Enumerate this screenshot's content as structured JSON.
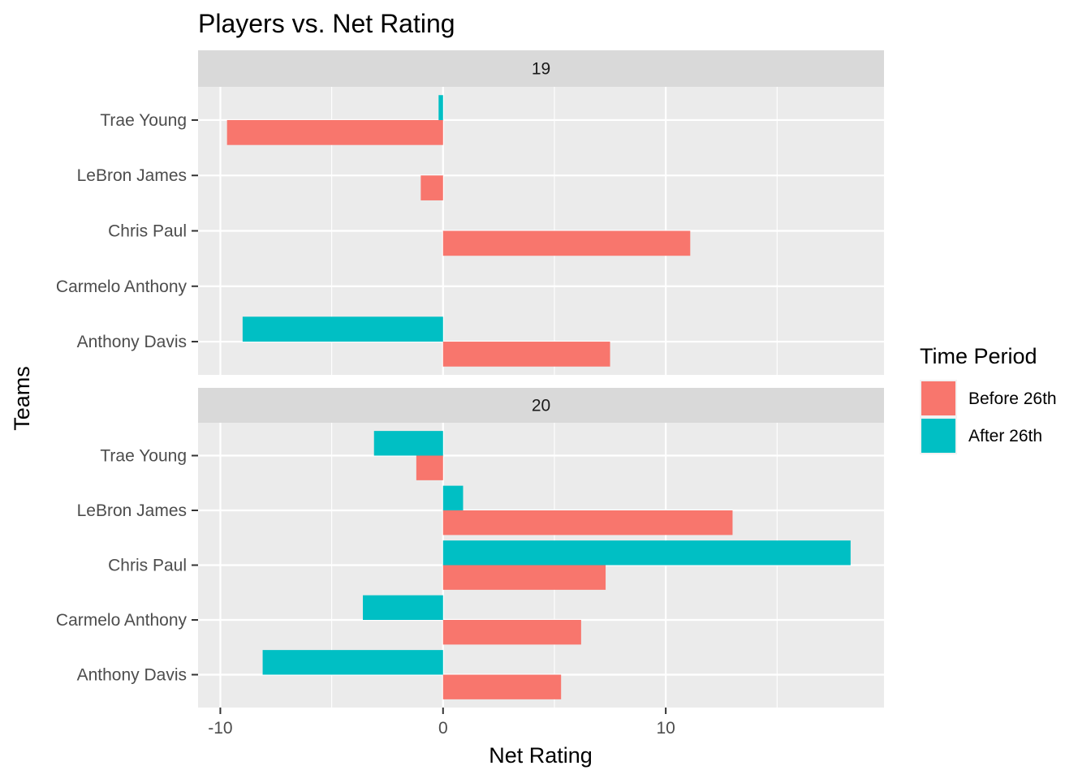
{
  "chart_data": {
    "type": "bar",
    "orientation": "horizontal",
    "title": "Players vs. Net Rating",
    "xlabel": "Net Rating",
    "ylabel": "Teams",
    "xlim": [
      -11,
      19.8
    ],
    "x_ticks": [
      -10,
      0,
      10
    ],
    "x_tick_labels": [
      "-10",
      "0",
      "10"
    ],
    "categories": [
      "Trae Young",
      "LeBron James",
      "Chris Paul",
      "Carmelo Anthony",
      "Anthony Davis"
    ],
    "legend": {
      "title": "Time Period",
      "position": "right",
      "entries": [
        {
          "label": "Before 26th",
          "color": "#F8766D"
        },
        {
          "label": "After 26th",
          "color": "#00BFC4"
        }
      ]
    },
    "grid": true,
    "facets": [
      {
        "label": "19",
        "series": [
          {
            "name": "Before 26th",
            "color": "#F8766D",
            "values": [
              -9.7,
              -1.0,
              11.1,
              null,
              7.5
            ]
          },
          {
            "name": "After 26th",
            "color": "#00BFC4",
            "values": [
              -0.2,
              null,
              null,
              null,
              -9.0
            ]
          }
        ]
      },
      {
        "label": "20",
        "series": [
          {
            "name": "Before 26th",
            "color": "#F8766D",
            "values": [
              -1.2,
              13.0,
              7.3,
              6.2,
              5.3
            ]
          },
          {
            "name": "After 26th",
            "color": "#00BFC4",
            "values": [
              -3.1,
              0.9,
              18.3,
              -3.6,
              -8.1
            ]
          }
        ]
      }
    ]
  }
}
